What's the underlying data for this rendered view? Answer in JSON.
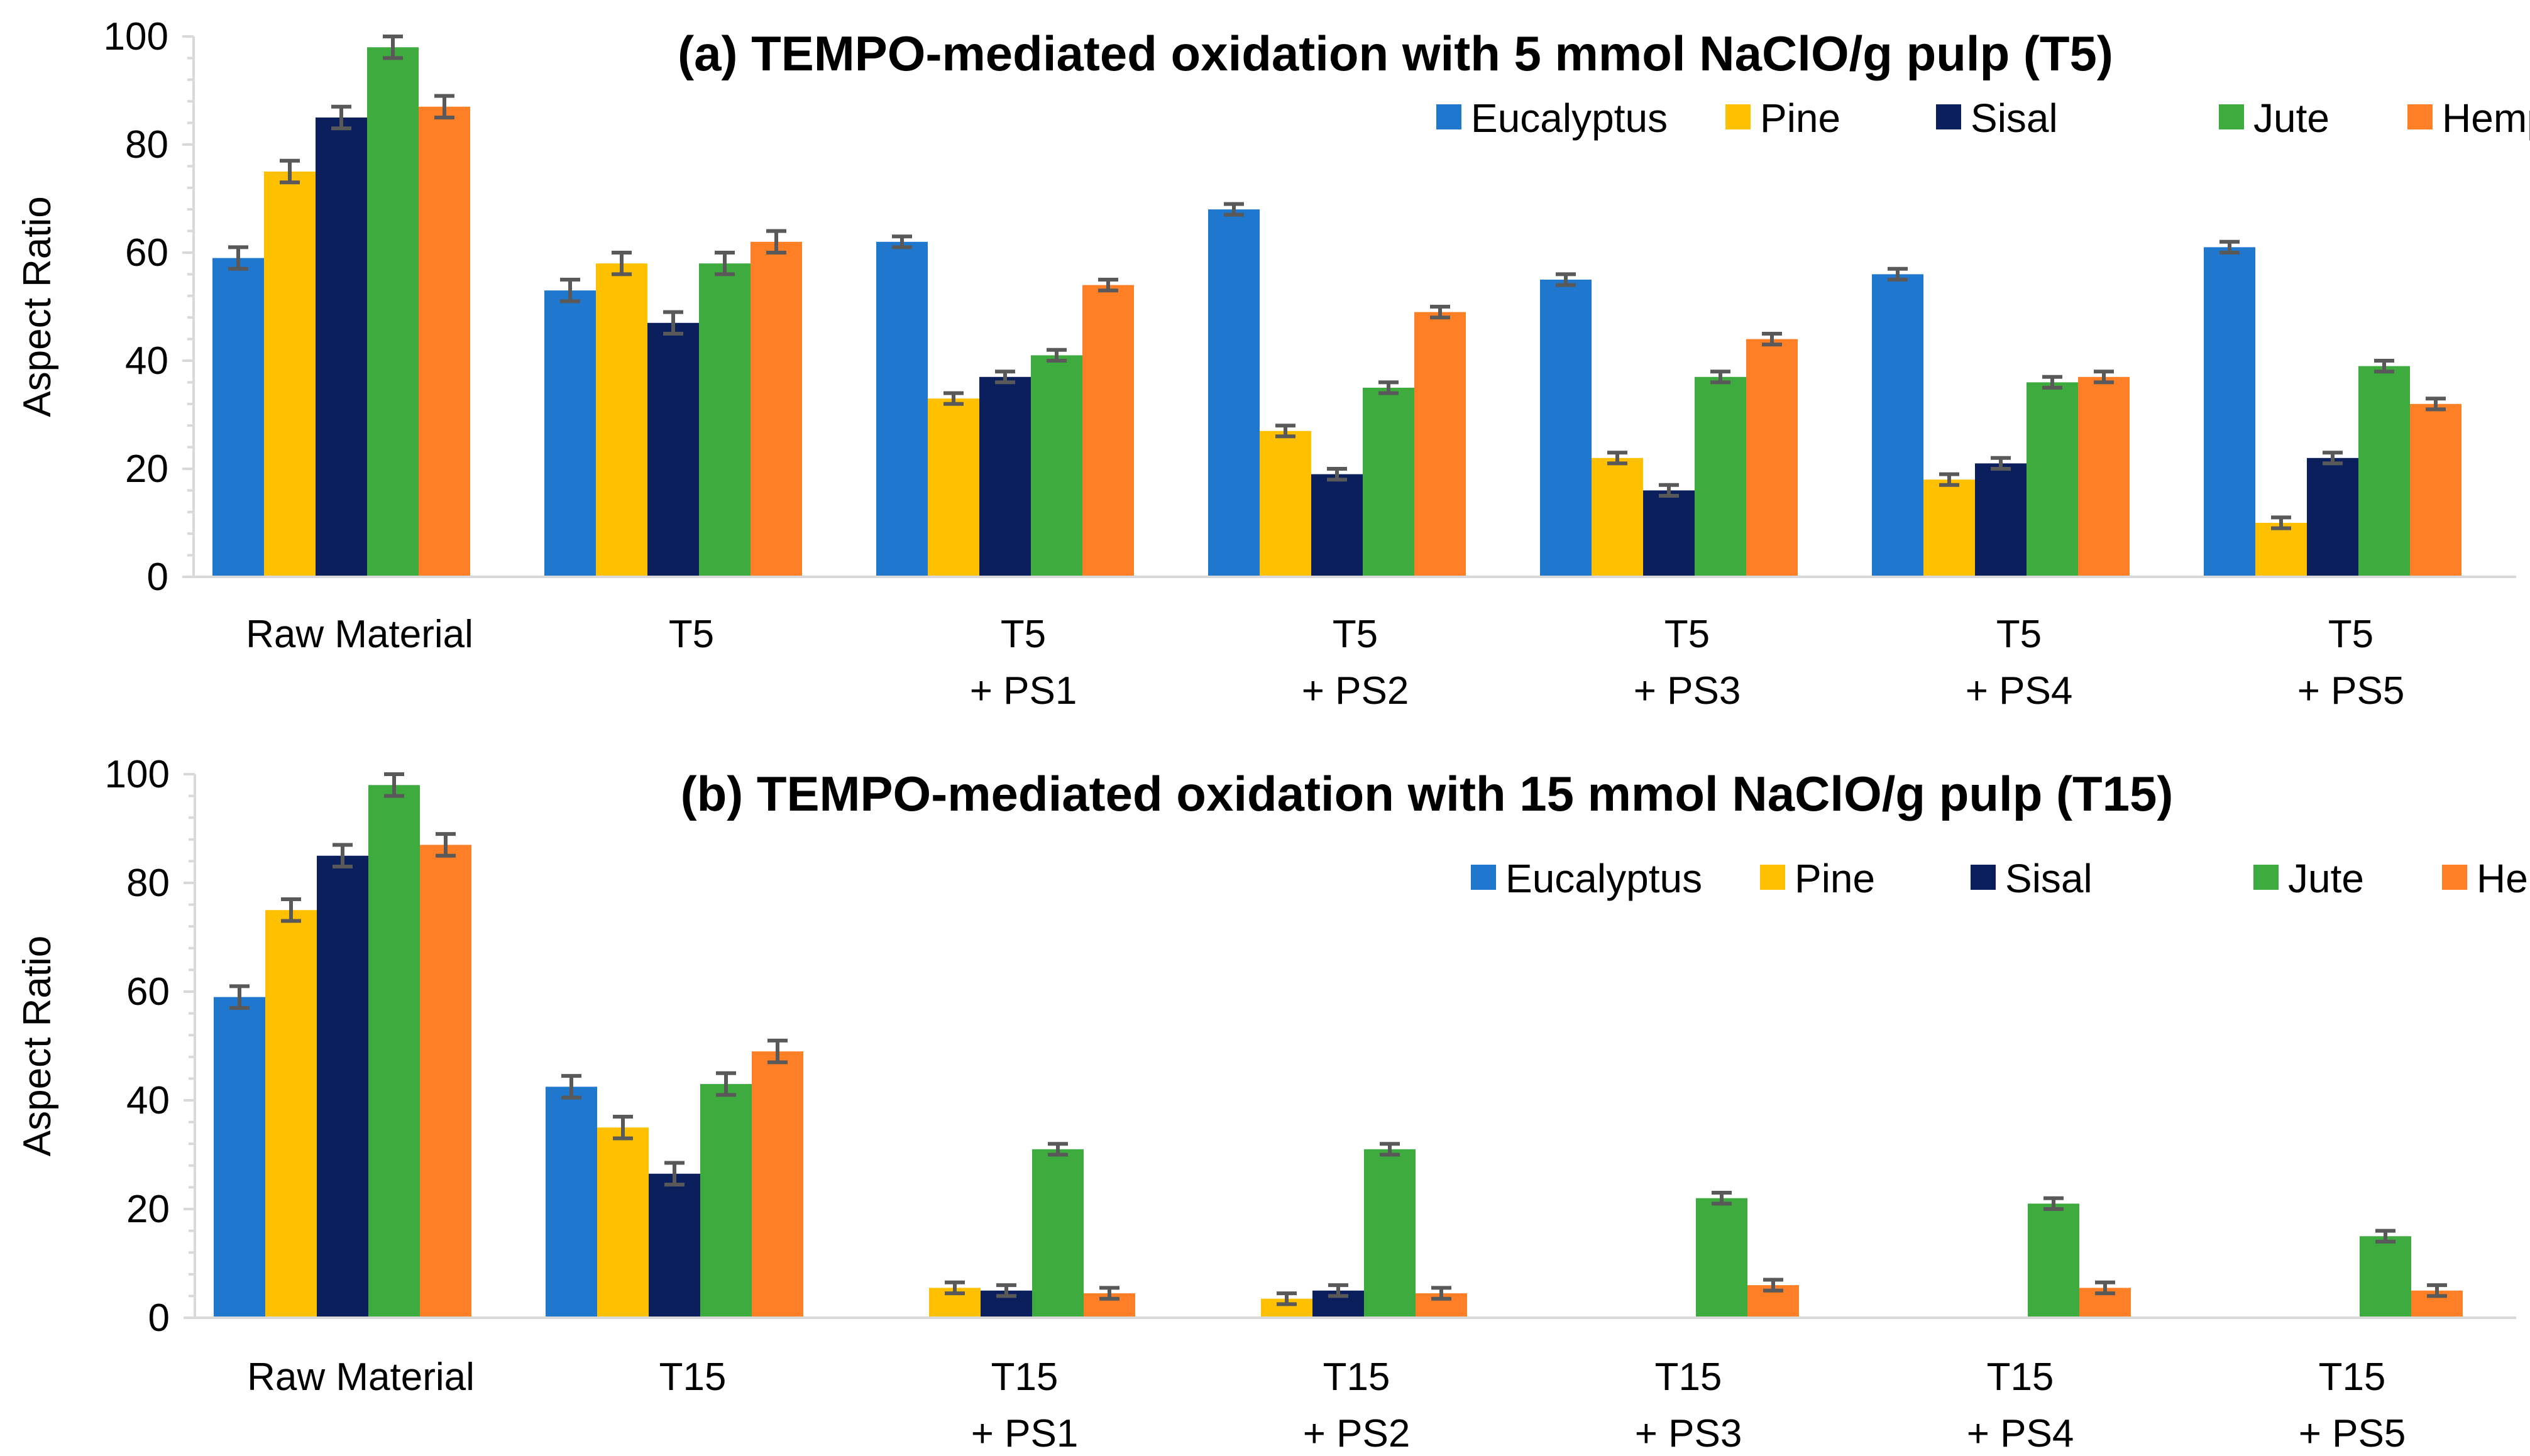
{
  "chart_data": [
    {
      "type": "bar",
      "title": "(a) TEMPO-mediated oxidation with 5 mmol NaClO/g pulp (T5)",
      "xlabel": "",
      "ylabel": "Aspect Ratio",
      "ylim": [
        0,
        100
      ],
      "yticks": [
        "0",
        "20",
        "40",
        "60",
        "80",
        "100"
      ],
      "legend_position": "top-right",
      "categories": [
        [
          "Raw Material"
        ],
        [
          "T5"
        ],
        [
          "T5",
          "+ PS1"
        ],
        [
          "T5",
          "+ PS2"
        ],
        [
          "T5",
          "+ PS3"
        ],
        [
          "T5",
          "+ PS4"
        ],
        [
          "T5",
          "+ PS5"
        ]
      ],
      "series": [
        {
          "name": "Eucalyptus",
          "color": "#1F77CE",
          "values": [
            59,
            53,
            62,
            68,
            55,
            56,
            61
          ],
          "errors": [
            2,
            2,
            1,
            1,
            1,
            1,
            1
          ]
        },
        {
          "name": "Pine",
          "color": "#FFC000",
          "values": [
            75,
            58,
            33,
            27,
            22,
            18,
            10
          ],
          "errors": [
            2,
            2,
            1,
            1,
            1,
            1,
            1
          ]
        },
        {
          "name": "Sisal",
          "color": "#0A1F5C",
          "values": [
            85,
            47,
            37,
            19,
            16,
            21,
            22
          ],
          "errors": [
            2,
            2,
            1,
            1,
            1,
            1,
            1
          ]
        },
        {
          "name": "Jute",
          "color": "#3EAB3E",
          "values": [
            98,
            58,
            41,
            35,
            37,
            36,
            39
          ],
          "errors": [
            2,
            2,
            1,
            1,
            1,
            1,
            1
          ]
        },
        {
          "name": "Hemp",
          "color": "#FF7F27",
          "values": [
            87,
            62,
            54,
            49,
            44,
            37,
            32
          ],
          "errors": [
            2,
            2,
            1,
            1,
            1,
            1,
            1
          ]
        }
      ]
    },
    {
      "type": "bar",
      "title": "(b) TEMPO-mediated oxidation with 15 mmol NaClO/g pulp (T15)",
      "xlabel": "",
      "ylabel": "Aspect Ratio",
      "ylim": [
        0,
        100
      ],
      "yticks": [
        "0",
        "20",
        "40",
        "60",
        "80",
        "100"
      ],
      "legend_position": "top-right",
      "categories": [
        [
          "Raw Material"
        ],
        [
          "T15"
        ],
        [
          "T15",
          "+ PS1"
        ],
        [
          "T15",
          "+ PS2"
        ],
        [
          "T15",
          "+ PS3"
        ],
        [
          "T15",
          "+ PS4"
        ],
        [
          "T15",
          "+ PS5"
        ]
      ],
      "series": [
        {
          "name": "Eucalyptus",
          "color": "#1F77CE",
          "values": [
            59,
            42.5,
            null,
            null,
            null,
            null,
            null
          ],
          "errors": [
            2,
            2,
            0,
            0,
            0,
            0,
            0
          ]
        },
        {
          "name": "Pine",
          "color": "#FFC000",
          "values": [
            75,
            35,
            5.5,
            3.5,
            null,
            null,
            null
          ],
          "errors": [
            2,
            2,
            1,
            1,
            0,
            0,
            0
          ]
        },
        {
          "name": "Sisal",
          "color": "#0A1F5C",
          "values": [
            85,
            26.5,
            5,
            5,
            null,
            null,
            null
          ],
          "errors": [
            2,
            2,
            1,
            1,
            0,
            0,
            0
          ]
        },
        {
          "name": "Jute",
          "color": "#3EAB3E",
          "values": [
            98,
            43,
            31,
            31,
            22,
            21,
            15
          ],
          "errors": [
            2,
            2,
            1,
            1,
            1,
            1,
            1
          ]
        },
        {
          "name": "Hemp",
          "color": "#FF7F27",
          "values": [
            87,
            49,
            4.5,
            4.5,
            6,
            5.5,
            5
          ],
          "errors": [
            2,
            2,
            1,
            1,
            1,
            1,
            1
          ]
        }
      ]
    }
  ]
}
